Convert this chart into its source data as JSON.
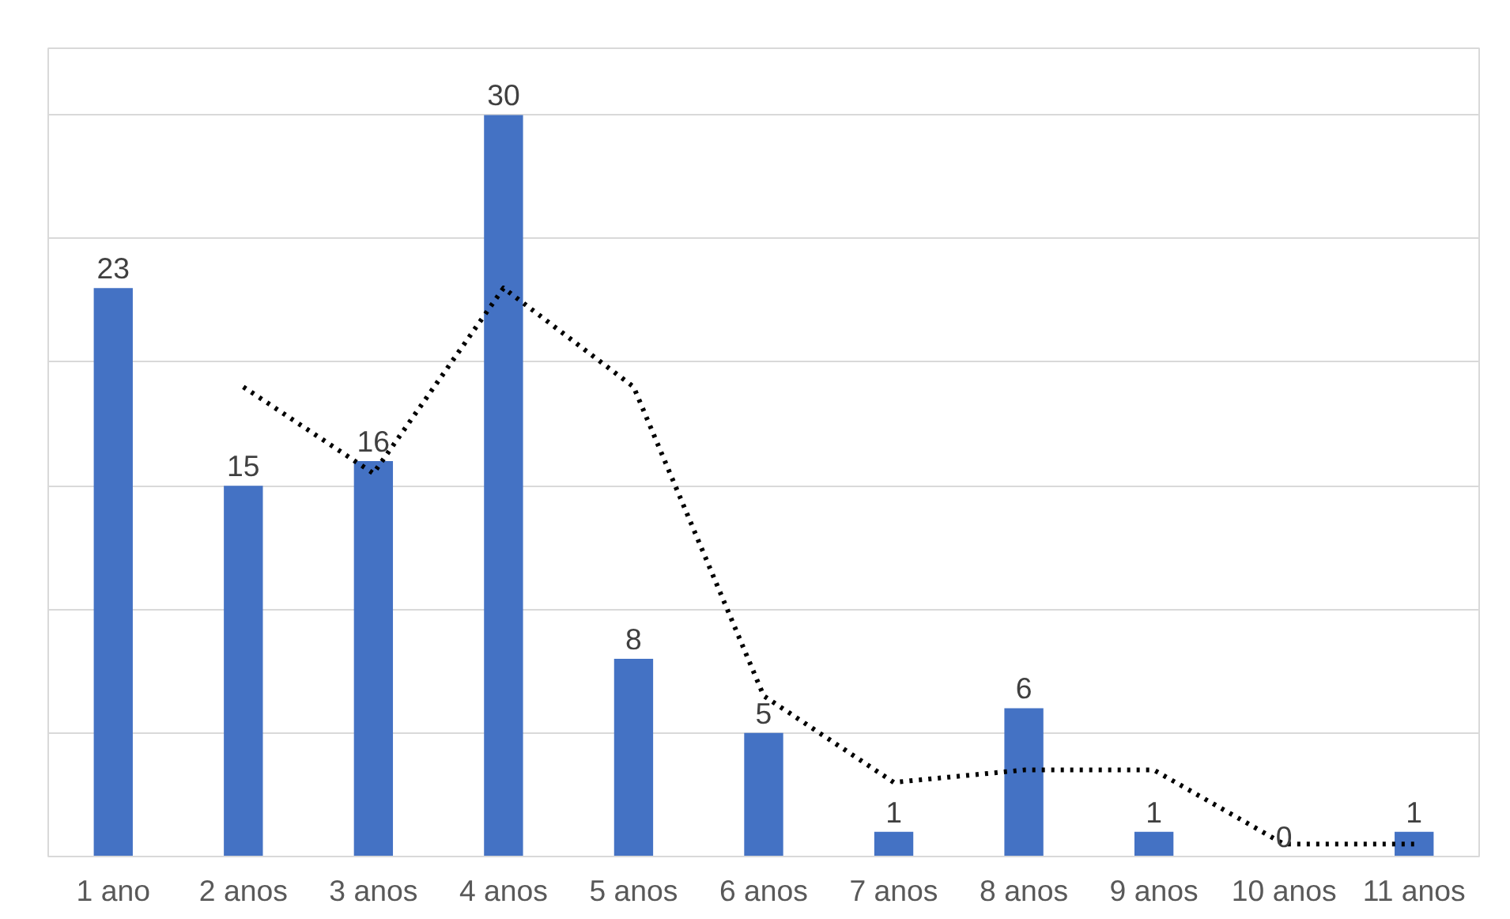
{
  "chart_data": {
    "type": "bar",
    "categories": [
      "1 ano",
      "2 anos",
      "3 anos",
      "4 anos",
      "5 anos",
      "6 anos",
      "7 anos",
      "8 anos",
      "9 anos",
      "10 anos",
      "11 anos"
    ],
    "series": [
      {
        "color": "#4472c4",
        "values": [
          23,
          15,
          16,
          30,
          8,
          5,
          1,
          6,
          1,
          0,
          1
        ],
        "value_labels": [
          "23",
          "15",
          "16",
          "30",
          "8",
          "5",
          "1",
          "6",
          "1",
          "0",
          "1"
        ]
      },
      {
        "type": "line",
        "color": "#000000",
        "line_style": "dotted",
        "values": [
          null,
          19,
          15.5,
          23,
          19,
          6.5,
          3,
          3.5,
          3.5,
          0.5,
          0.5
        ]
      }
    ],
    "ylim": [
      0,
      30
    ],
    "yticks": [
      {
        "value": 0,
        "label": null
      },
      {
        "value": 5,
        "label": null
      },
      {
        "value": 10,
        "label": null
      },
      {
        "value": 15,
        "label": null
      },
      {
        "value": 20,
        "label": null
      },
      {
        "value": 25,
        "label": null
      },
      {
        "value": 30,
        "label": null
      }
    ],
    "tick_labels": "x",
    "grid": "y"
  }
}
